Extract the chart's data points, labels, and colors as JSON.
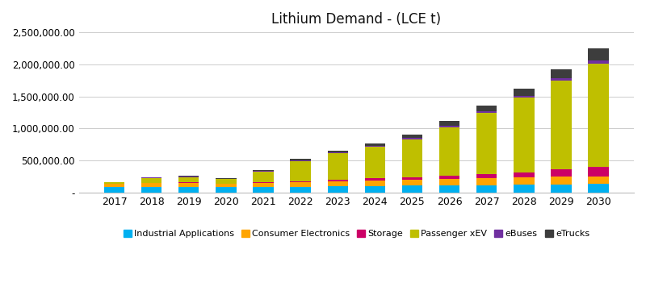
{
  "title": "Lithium Demand - (LCE t)",
  "years": [
    2017,
    2018,
    2019,
    2020,
    2021,
    2022,
    2023,
    2024,
    2025,
    2026,
    2027,
    2028,
    2029,
    2030
  ],
  "series": {
    "Industrial Applications": {
      "color": "#00B0F0",
      "values": [
        85000,
        92000,
        92000,
        82000,
        88000,
        92000,
        98000,
        102000,
        108000,
        112000,
        118000,
        122000,
        128000,
        132000
      ]
    },
    "Consumer Electronics": {
      "color": "#FFA500",
      "values": [
        50000,
        58000,
        62000,
        52000,
        62000,
        72000,
        80000,
        88000,
        92000,
        98000,
        105000,
        110000,
        118000,
        125000
      ]
    },
    "Storage": {
      "color": "#CC0066",
      "values": [
        4000,
        6000,
        8000,
        6000,
        10000,
        15000,
        22000,
        30000,
        38000,
        50000,
        68000,
        85000,
        115000,
        140000
      ]
    },
    "Passenger xEV": {
      "color": "#BFBF00",
      "values": [
        20000,
        70000,
        80000,
        70000,
        170000,
        310000,
        410000,
        490000,
        590000,
        760000,
        950000,
        1160000,
        1380000,
        1620000
      ]
    },
    "eBuses": {
      "color": "#7030A0",
      "values": [
        5000,
        7000,
        9000,
        8000,
        11000,
        14000,
        18000,
        20000,
        22000,
        25000,
        28000,
        32000,
        38000,
        48000
      ]
    },
    "eTrucks": {
      "color": "#3D3D3D",
      "values": [
        4000,
        6000,
        9000,
        8000,
        14000,
        20000,
        28000,
        40000,
        55000,
        72000,
        90000,
        110000,
        145000,
        185000
      ]
    }
  },
  "ylim": [
    0,
    2500000
  ],
  "yticks": [
    0,
    500000,
    1000000,
    1500000,
    2000000,
    2500000
  ],
  "background_color": "#ffffff",
  "grid_color": "#cccccc"
}
